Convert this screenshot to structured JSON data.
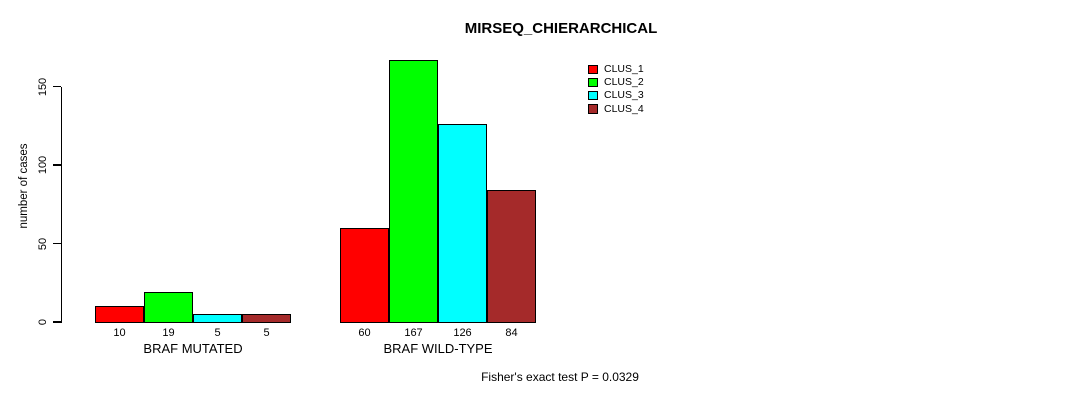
{
  "chart_data": {
    "type": "bar",
    "title": "MIRSEQ_CHIERARCHICAL",
    "ylabel": "number of cases",
    "xlabel": "",
    "categories": [
      "BRAF MUTATED",
      "BRAF WILD-TYPE"
    ],
    "series": [
      {
        "name": "CLUS_1",
        "color": "#FF0000",
        "values": [
          10,
          60
        ]
      },
      {
        "name": "CLUS_2",
        "color": "#00FF00",
        "values": [
          19,
          167
        ]
      },
      {
        "name": "CLUS_3",
        "color": "#00FFFF",
        "values": [
          5,
          126
        ]
      },
      {
        "name": "CLUS_4",
        "color": "#A52A2A",
        "values": [
          5,
          84
        ]
      }
    ],
    "yticks": [
      0,
      50,
      100,
      150
    ],
    "ylim": [
      0,
      150
    ],
    "grid": false,
    "bar_value_labels_shown": true,
    "legend_position": "top-right",
    "legend_entries": [
      "CLUS_1",
      "CLUS_2",
      "CLUS_3",
      "CLUS_4"
    ],
    "annotation": "Fisher's exact test P = 0.0329"
  },
  "colors": {
    "axis": "#000000",
    "background": "#FFFFFF",
    "text": "#000000"
  }
}
